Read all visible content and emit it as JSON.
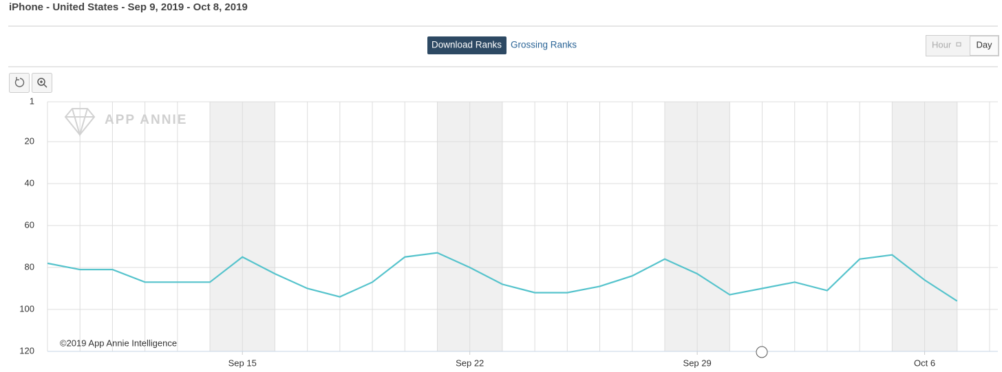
{
  "ui": {
    "title": "iPhone - United States - Sep 9, 2019 - Oct 8, 2019",
    "tabs": [
      "Download Ranks",
      "Grossing Ranks"
    ],
    "granularity": [
      "Hour",
      "Day"
    ],
    "watermark": "APP ANNIE",
    "copyright": "©2019 App Annie Intelligence"
  },
  "chart_data": {
    "type": "line",
    "categories": [
      null,
      null,
      null,
      null,
      null,
      null,
      "Sep 15",
      null,
      null,
      null,
      null,
      null,
      null,
      "Sep 22",
      null,
      null,
      null,
      null,
      null,
      null,
      "Sep 29",
      null,
      null,
      null,
      null,
      null,
      null,
      "Oct 6",
      null,
      null
    ],
    "series": [
      {
        "color": "#55c3cc",
        "values": [
          78,
          81,
          81,
          87,
          87,
          87,
          75,
          83,
          90,
          94,
          87,
          75,
          73,
          80,
          88,
          92,
          92,
          89,
          84,
          76,
          83,
          93,
          90,
          87,
          91,
          76,
          74,
          86,
          96,
          null
        ]
      }
    ],
    "ylim": [
      1,
      120
    ],
    "y_reversed": true,
    "yticks": [
      1,
      20,
      40,
      60,
      80,
      100,
      120
    ],
    "grid": true
  }
}
